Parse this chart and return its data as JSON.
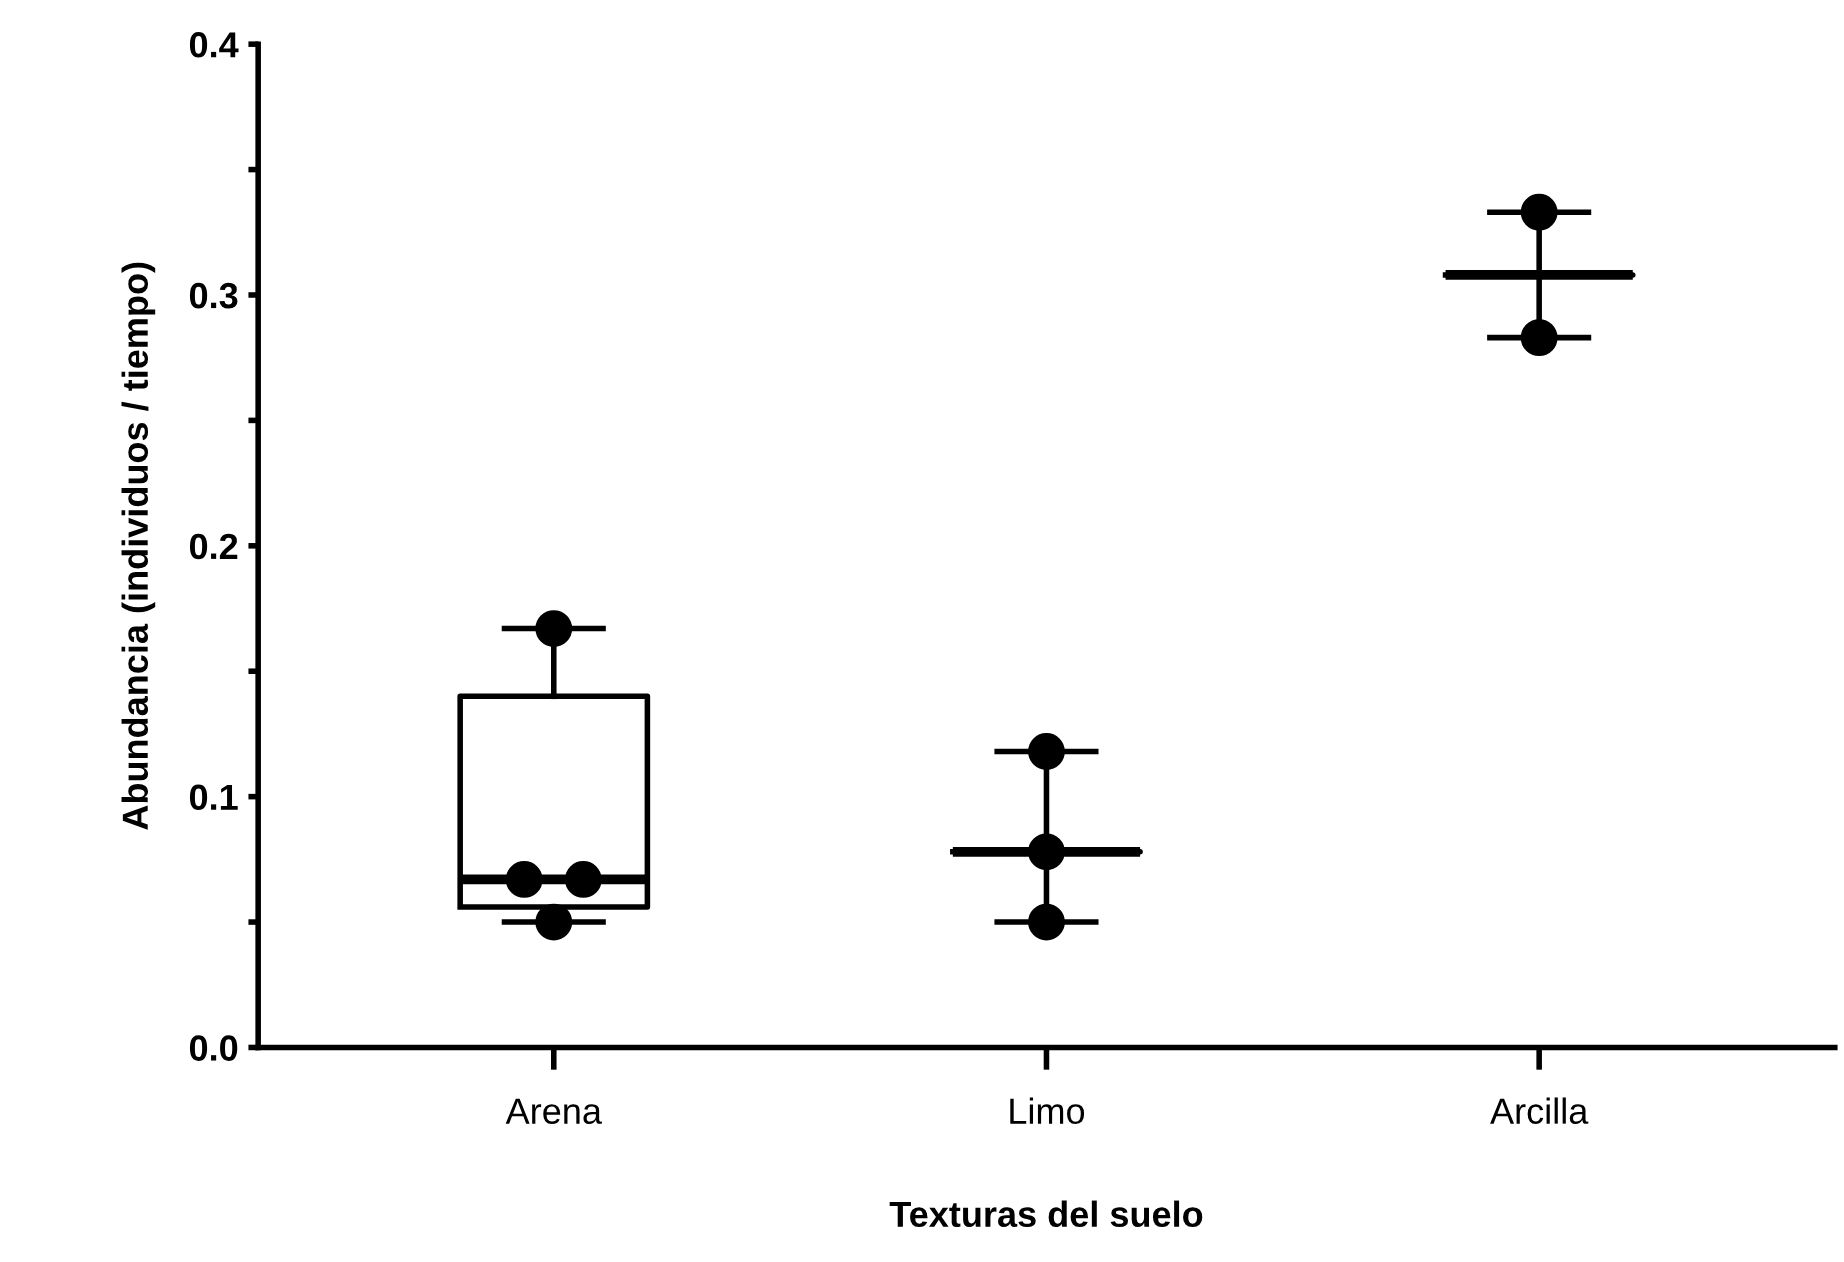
{
  "chart_data": {
    "type": "box",
    "xlabel": "Texturas del suelo",
    "ylabel": "Abundancia (individuos / tiempo)",
    "categories": [
      "Arena",
      "Limo",
      "Arcilla"
    ],
    "boxes": [
      {
        "low": 0.05,
        "q1": 0.056,
        "median": 0.067,
        "q3": 0.14,
        "high": 0.167
      },
      {
        "low": 0.05,
        "q1": 0.078,
        "median": 0.078,
        "q3": 0.078,
        "high": 0.118
      },
      {
        "low": 0.283,
        "q1": 0.308,
        "median": 0.308,
        "q3": 0.308,
        "high": 0.333
      }
    ],
    "series": [
      {
        "type": "scatter",
        "color": "#000000",
        "x": [
          "Arena",
          "Arena",
          "Arena",
          "Arena",
          "Limo",
          "Limo",
          "Limo",
          "Arcilla",
          "Arcilla"
        ],
        "values": [
          0.167,
          0.067,
          0.067,
          0.05,
          0.118,
          0.078,
          0.05,
          0.333,
          0.283
        ]
      }
    ],
    "ylim": [
      0,
      0.4
    ],
    "yticks": [
      {
        "value": 0,
        "label": "0.0"
      },
      {
        "value": 0.05,
        "label": null
      },
      {
        "value": 0.1,
        "label": "0.1"
      },
      {
        "value": 0.15,
        "label": null
      },
      {
        "value": 0.2,
        "label": "0.2"
      },
      {
        "value": 0.25,
        "label": null
      },
      {
        "value": 0.3,
        "label": "0.3"
      },
      {
        "value": 0.35,
        "label": null
      },
      {
        "value": 0.4,
        "label": "0.4"
      }
    ],
    "grid": false,
    "legend": false,
    "marker": "circle"
  }
}
